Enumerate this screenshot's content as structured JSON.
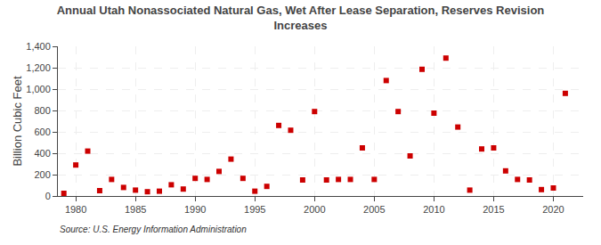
{
  "chart_data": {
    "type": "scatter",
    "title": "Annual Utah Nonassociated Natural Gas, Wet After Lease Separation, Reserves Revision\nIncreases",
    "ylabel": "Billion Cubic Feet",
    "source": "Source: U.S. Energy Information Administration",
    "color": "#cc0000",
    "marker": "square",
    "grid": true,
    "x": [
      1979,
      1980,
      1981,
      1982,
      1983,
      1984,
      1985,
      1986,
      1987,
      1988,
      1989,
      1990,
      1991,
      1992,
      1993,
      1994,
      1995,
      1996,
      1997,
      1998,
      1999,
      2000,
      2001,
      2002,
      2003,
      2004,
      2005,
      2006,
      2007,
      2008,
      2009,
      2010,
      2011,
      2012,
      2013,
      2014,
      2015,
      2016,
      2017,
      2018,
      2019,
      2020,
      2021
    ],
    "values": [
      25,
      290,
      420,
      50,
      155,
      80,
      55,
      40,
      45,
      105,
      65,
      165,
      155,
      230,
      345,
      165,
      45,
      90,
      660,
      615,
      150,
      790,
      150,
      155,
      155,
      450,
      155,
      1080,
      790,
      375,
      1185,
      775,
      1290,
      645,
      55,
      440,
      450,
      235,
      155,
      150,
      60,
      75,
      960
    ],
    "xlim": [
      1978.5,
      2022.5
    ],
    "xticks": [
      1980,
      1985,
      1990,
      1995,
      2000,
      2005,
      2010,
      2015,
      2020
    ],
    "ylim": [
      0,
      1400
    ],
    "yticks": [
      0,
      200,
      400,
      600,
      800,
      {
        "value": 1000,
        "label": "1,000"
      },
      {
        "value": 1200,
        "label": "1,200"
      },
      {
        "value": 1400,
        "label": "1,400"
      }
    ]
  }
}
